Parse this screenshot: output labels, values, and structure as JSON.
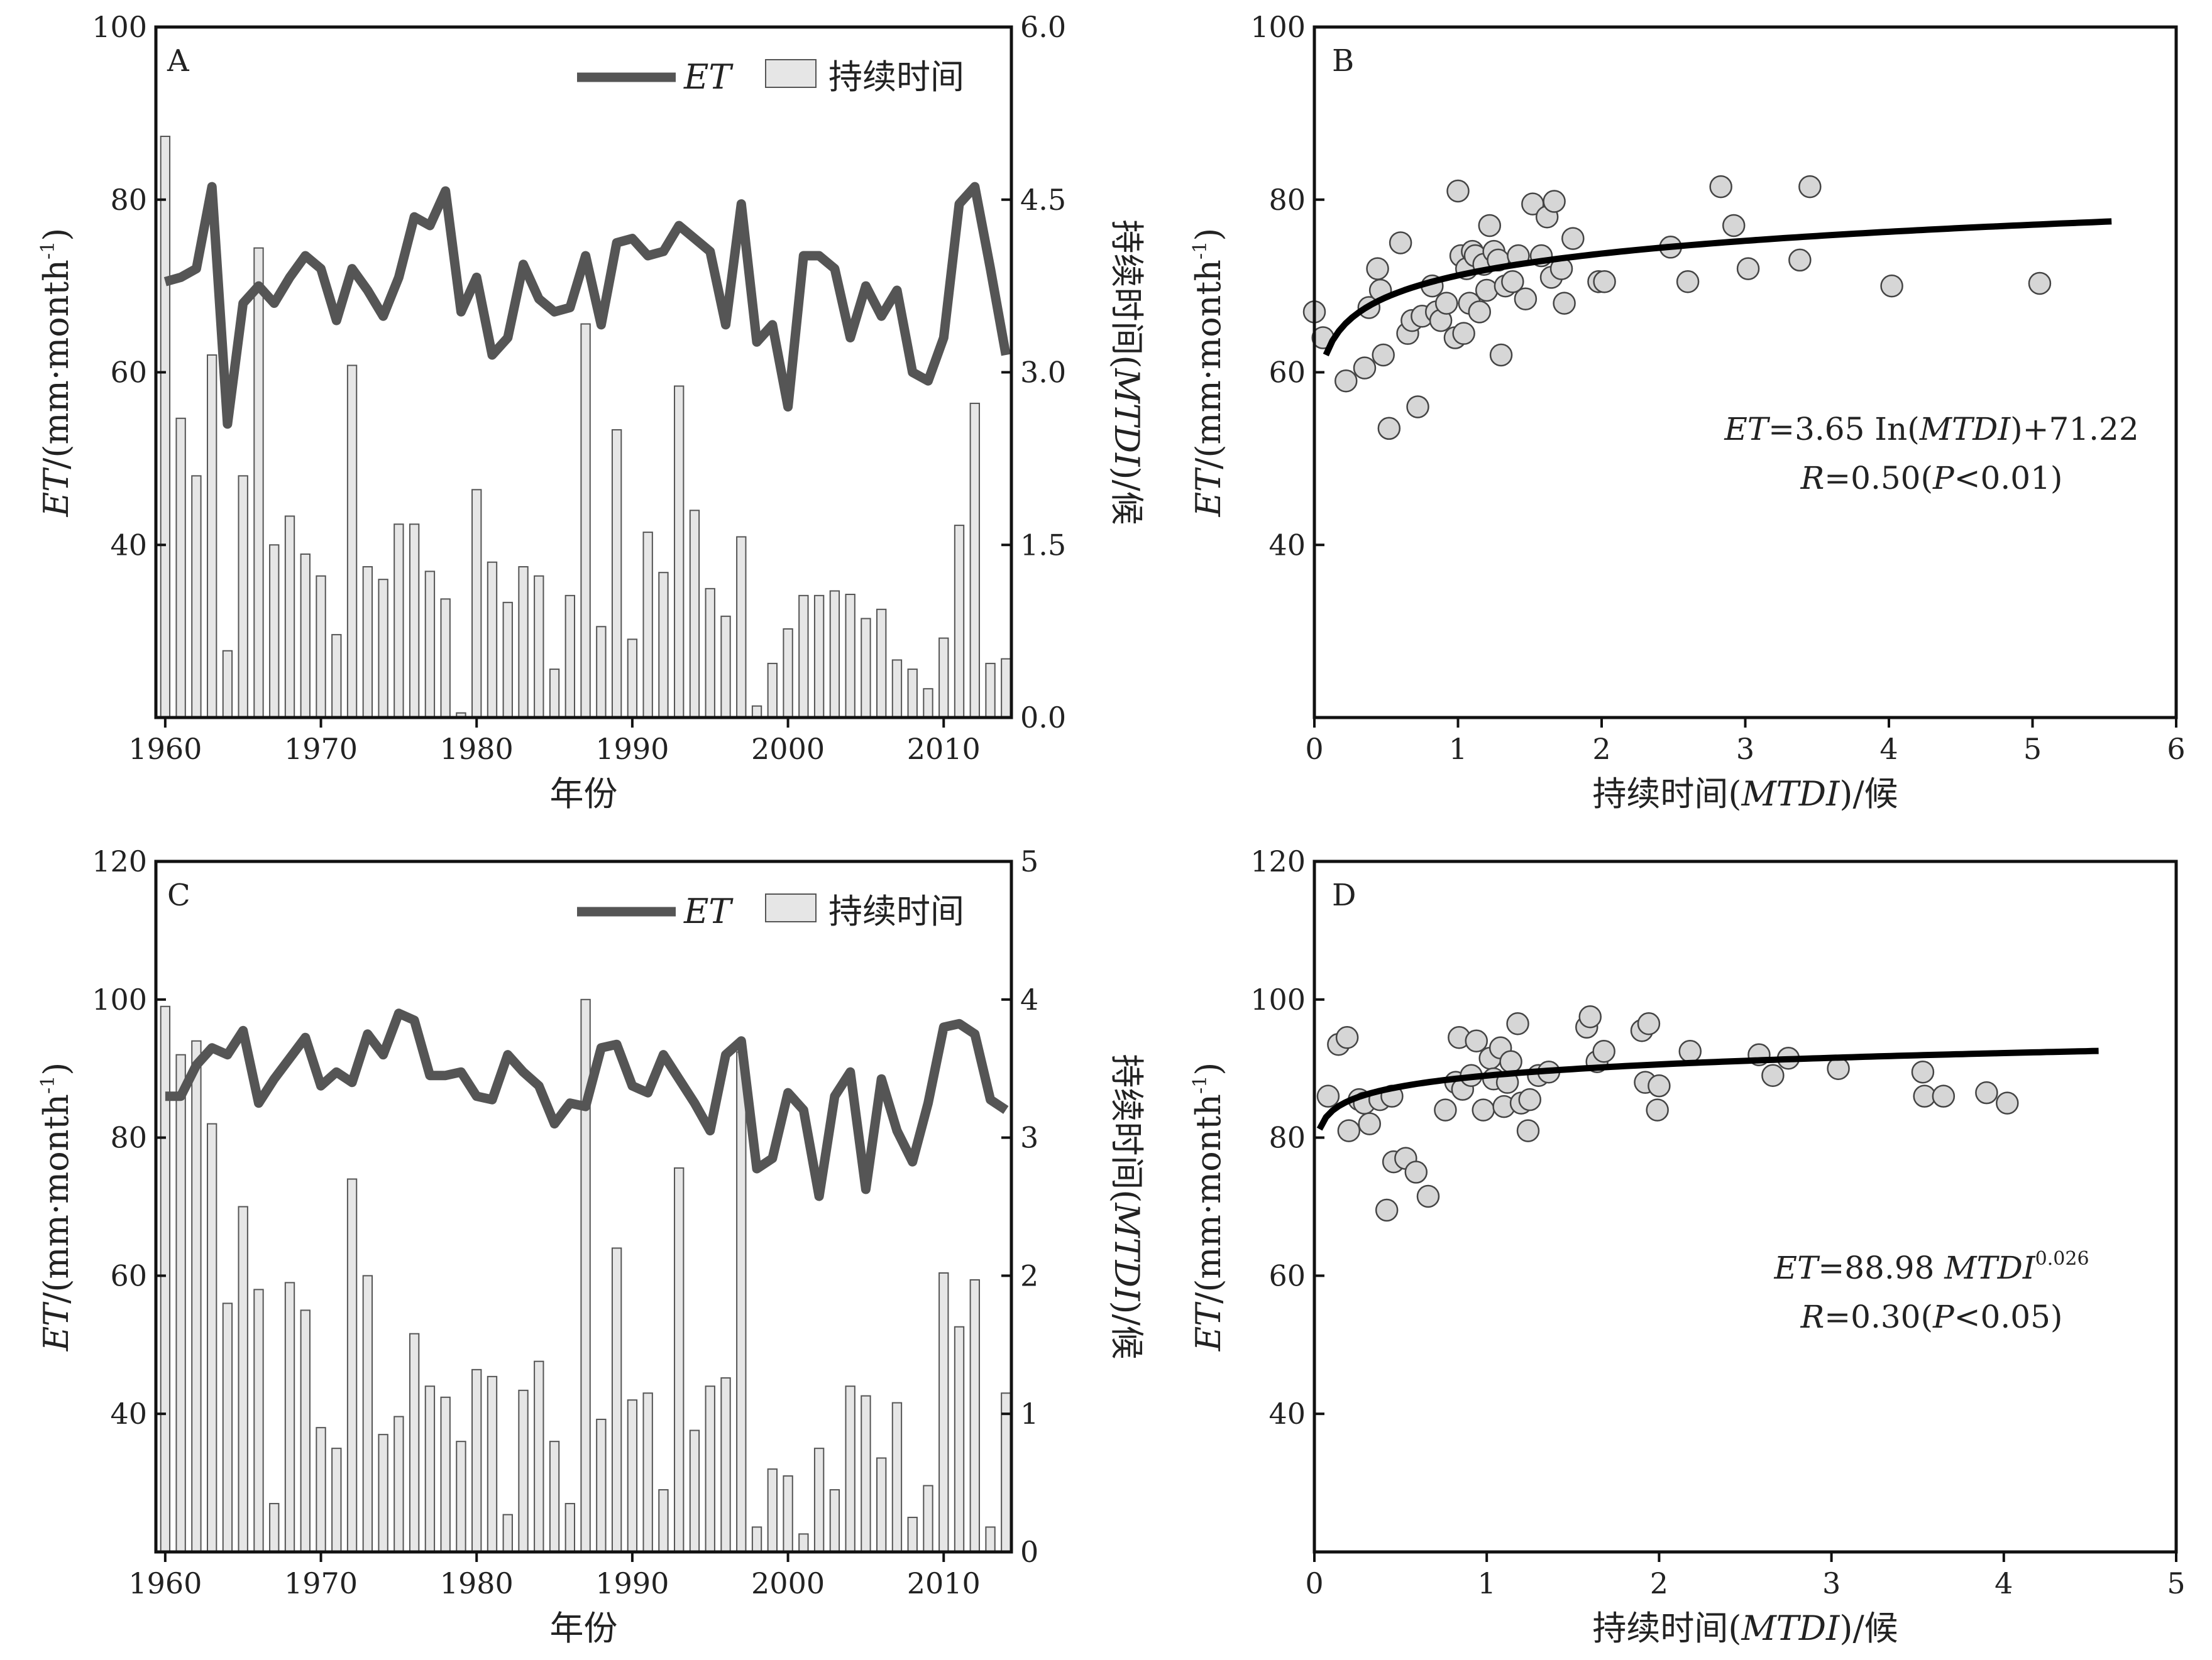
{
  "chart_data": [
    {
      "panel": "A",
      "type": "bar+line",
      "x": [
        1960,
        1961,
        1962,
        1963,
        1964,
        1965,
        1966,
        1967,
        1968,
        1969,
        1970,
        1971,
        1972,
        1973,
        1974,
        1975,
        1976,
        1977,
        1978,
        1979,
        1980,
        1981,
        1982,
        1983,
        1984,
        1985,
        1986,
        1987,
        1988,
        1989,
        1990,
        1991,
        1992,
        1993,
        1994,
        1995,
        1996,
        1997,
        1998,
        1999,
        2000,
        2001,
        2002,
        2003,
        2004,
        2005,
        2006,
        2007,
        2008,
        2009,
        2010,
        2011,
        2012,
        2013,
        2014
      ],
      "xlabel": "年份",
      "xticks": [
        "1960",
        "1970",
        "1980",
        "1990",
        "2000",
        "2010"
      ],
      "ylabel_left": {
        "base": "ET",
        "unit": "/(mm·month",
        "sup": "-1",
        "close": ")"
      },
      "ylim_left": [
        20,
        100
      ],
      "yticks_left": [
        "40",
        "60",
        "80",
        "100"
      ],
      "ylabel_right": {
        "pre": "持续时间(",
        "ital": "MTDI",
        "post": ")/候"
      },
      "ylim_right": [
        0,
        6
      ],
      "yticks_right": [
        "0.0",
        "1.5",
        "3.0",
        "4.5",
        "6.0"
      ],
      "legend": {
        "line": "ET",
        "bar": "持续时间",
        "placement": "top-right"
      },
      "series": [
        {
          "name": "ET",
          "kind": "line",
          "axis": "left",
          "values": [
            70.5,
            71,
            72,
            81.5,
            54,
            68,
            70,
            68,
            71,
            73.5,
            72,
            66,
            72,
            69.5,
            66.5,
            71,
            78,
            77,
            81,
            67,
            71,
            62,
            64,
            72.5,
            68.5,
            67,
            67.5,
            73.5,
            65.5,
            75,
            75.5,
            73.5,
            74,
            77,
            75.5,
            74,
            65.5,
            79.5,
            63.5,
            65.5,
            56,
            73.5,
            73.5,
            72,
            64,
            70,
            66.5,
            69.5,
            60,
            59,
            64,
            79.5,
            81.5,
            72,
            62
          ]
        },
        {
          "name": "持续时间",
          "kind": "bar",
          "axis": "right",
          "values": [
            5.05,
            2.6,
            2.1,
            3.15,
            0.58,
            2.1,
            4.08,
            1.5,
            1.75,
            1.42,
            1.23,
            0.72,
            3.06,
            1.31,
            1.2,
            1.68,
            1.68,
            1.27,
            1.03,
            0.04,
            1.98,
            1.35,
            1.0,
            1.31,
            1.23,
            0.42,
            1.06,
            3.42,
            0.79,
            2.5,
            0.68,
            1.61,
            1.26,
            2.88,
            1.8,
            1.12,
            0.88,
            1.57,
            0.1,
            0.47,
            0.77,
            1.06,
            1.06,
            1.1,
            1.07,
            0.86,
            0.94,
            0.5,
            0.42,
            0.25,
            0.69,
            1.67,
            2.73,
            0.47,
            0.51
          ]
        }
      ]
    },
    {
      "panel": "B",
      "type": "scatter+fit",
      "xlabel": {
        "pre": "持续时间(",
        "ital": "MTDI",
        "post": ")/候"
      },
      "xlim": [
        0,
        6
      ],
      "xticks": [
        "0",
        "1",
        "2",
        "3",
        "4",
        "5",
        "6"
      ],
      "ylabel": {
        "base": "ET",
        "unit": "/(mm·month",
        "sup": "-1",
        "close": ")"
      },
      "ylim": [
        20,
        100
      ],
      "yticks": [
        "40",
        "60",
        "80",
        "100"
      ],
      "equation": {
        "l1_i": "ET",
        "l1_t": "=3.65 In(",
        "l1_i2": "MTDI",
        "l1_t2": ")+71.22",
        "l2_i": "R",
        "l2_t": "=0.50(",
        "l2_i2": "P",
        "l2_t2": "<0.01)"
      },
      "fit": {
        "model": "log",
        "a": 3.65,
        "b": 71.22,
        "x_range": [
          0.08,
          5.55
        ]
      },
      "points": [
        [
          0,
          67
        ],
        [
          0.06,
          64
        ],
        [
          0.22,
          59
        ],
        [
          0.35,
          60.5
        ],
        [
          0.38,
          67.5
        ],
        [
          0.44,
          72
        ],
        [
          0.46,
          69.5
        ],
        [
          0.48,
          62
        ],
        [
          0.52,
          53.5
        ],
        [
          0.6,
          75
        ],
        [
          0.65,
          64.5
        ],
        [
          0.68,
          66
        ],
        [
          0.72,
          56
        ],
        [
          0.75,
          66.5
        ],
        [
          0.82,
          70
        ],
        [
          0.85,
          67
        ],
        [
          0.88,
          66
        ],
        [
          0.92,
          68
        ],
        [
          0.98,
          64
        ],
        [
          1.0,
          81
        ],
        [
          1.02,
          73.5
        ],
        [
          1.04,
          64.5
        ],
        [
          1.06,
          72
        ],
        [
          1.08,
          68
        ],
        [
          1.1,
          74
        ],
        [
          1.12,
          73.5
        ],
        [
          1.15,
          67
        ],
        [
          1.18,
          72.5
        ],
        [
          1.2,
          69.5
        ],
        [
          1.22,
          77
        ],
        [
          1.25,
          74
        ],
        [
          1.28,
          73
        ],
        [
          1.3,
          62
        ],
        [
          1.33,
          70
        ],
        [
          1.38,
          70.5
        ],
        [
          1.42,
          73.5
        ],
        [
          1.47,
          68.5
        ],
        [
          1.52,
          79.5
        ],
        [
          1.58,
          73.5
        ],
        [
          1.62,
          78
        ],
        [
          1.65,
          71
        ],
        [
          1.67,
          79.8
        ],
        [
          1.72,
          72
        ],
        [
          1.74,
          68
        ],
        [
          1.8,
          75.5
        ],
        [
          1.98,
          70.5
        ],
        [
          2.02,
          70.5
        ],
        [
          2.48,
          74.5
        ],
        [
          2.6,
          70.5
        ],
        [
          2.83,
          81.5
        ],
        [
          2.92,
          77
        ],
        [
          3.02,
          72
        ],
        [
          3.38,
          73
        ],
        [
          3.45,
          81.5
        ],
        [
          4.02,
          70
        ],
        [
          5.05,
          70.3
        ]
      ]
    },
    {
      "panel": "C",
      "type": "bar+line",
      "x": [
        1960,
        1961,
        1962,
        1963,
        1964,
        1965,
        1966,
        1967,
        1968,
        1969,
        1970,
        1971,
        1972,
        1973,
        1974,
        1975,
        1976,
        1977,
        1978,
        1979,
        1980,
        1981,
        1982,
        1983,
        1984,
        1985,
        1986,
        1987,
        1988,
        1989,
        1990,
        1991,
        1992,
        1993,
        1994,
        1995,
        1996,
        1997,
        1998,
        1999,
        2000,
        2001,
        2002,
        2003,
        2004,
        2005,
        2006,
        2007,
        2008,
        2009,
        2010,
        2011,
        2012,
        2013,
        2014
      ],
      "xlabel": "年份",
      "xticks": [
        "1960",
        "1970",
        "1980",
        "1990",
        "2000",
        "2010"
      ],
      "ylabel_left": {
        "base": "ET",
        "unit": "/(mm·month",
        "sup": "-1",
        "close": ")"
      },
      "ylim_left": [
        20,
        120
      ],
      "yticks_left": [
        "40",
        "60",
        "80",
        "100",
        "120"
      ],
      "ylabel_right": {
        "pre": "持续时间(",
        "ital": "MTDI",
        "post": ")/候"
      },
      "ylim_right": [
        0,
        5
      ],
      "yticks_right": [
        "0",
        "1",
        "2",
        "3",
        "4",
        "5"
      ],
      "legend": {
        "line": "ET",
        "bar": "持续时间",
        "placement": "top-right"
      },
      "series": [
        {
          "name": "ET",
          "kind": "line",
          "axis": "left",
          "values": [
            86,
            86,
            90.5,
            93,
            92,
            95.5,
            85,
            88.5,
            91.5,
            94.5,
            87.5,
            89.5,
            88,
            95,
            92,
            98,
            97,
            89,
            89,
            89.5,
            86,
            85.5,
            92,
            89.5,
            87.5,
            82,
            85,
            84.5,
            93,
            93.5,
            87.5,
            86.5,
            92,
            88.5,
            85,
            81,
            92,
            94,
            75.5,
            77,
            86.5,
            84,
            71.5,
            86,
            89.5,
            72.5,
            88.5,
            81,
            76.5,
            85,
            96,
            96.5,
            95,
            85.5,
            84
          ]
        },
        {
          "name": "持续时间",
          "kind": "bar",
          "axis": "right",
          "values": [
            3.95,
            3.6,
            3.7,
            3.1,
            1.8,
            2.5,
            1.9,
            0.35,
            1.95,
            1.75,
            0.9,
            0.75,
            2.7,
            2.0,
            0.85,
            0.98,
            1.58,
            1.2,
            1.12,
            0.8,
            1.32,
            1.27,
            0.27,
            1.17,
            1.38,
            0.8,
            0.35,
            4.0,
            0.96,
            2.2,
            1.1,
            1.15,
            0.45,
            2.78,
            0.88,
            1.2,
            1.26,
            3.62,
            0.18,
            0.6,
            0.55,
            0.13,
            0.75,
            0.45,
            1.2,
            1.13,
            0.68,
            1.08,
            0.25,
            0.48,
            2.02,
            1.63,
            1.97,
            0.18,
            1.15
          ]
        }
      ]
    },
    {
      "panel": "D",
      "type": "scatter+fit",
      "xlabel": {
        "pre": "持续时间(",
        "ital": "MTDI",
        "post": ")/候"
      },
      "xlim": [
        0,
        5
      ],
      "xticks": [
        "0",
        "1",
        "2",
        "3",
        "4",
        "5"
      ],
      "ylabel": {
        "base": "ET",
        "unit": "/(mm·month",
        "sup": "-1",
        "close": ")"
      },
      "ylim": [
        20,
        120
      ],
      "yticks": [
        "40",
        "60",
        "80",
        "100",
        "120"
      ],
      "equation": {
        "l1_i": "ET",
        "l1_t": "=88.98 ",
        "l1_i2": "MTDI",
        "l1_sup": "0.026",
        "l2_i": "R",
        "l2_t": "=0.30(",
        "l2_i2": "P",
        "l2_t2": "<0.05)"
      },
      "fit": {
        "model": "power",
        "a": 88.98,
        "b": 0.026,
        "x_range": [
          0.03,
          4.55
        ]
      },
      "points": [
        [
          0.08,
          86
        ],
        [
          0.14,
          93.5
        ],
        [
          0.19,
          94.5
        ],
        [
          0.2,
          81
        ],
        [
          0.26,
          85.5
        ],
        [
          0.29,
          85
        ],
        [
          0.32,
          82
        ],
        [
          0.38,
          85.5
        ],
        [
          0.42,
          69.5
        ],
        [
          0.45,
          86
        ],
        [
          0.46,
          76.5
        ],
        [
          0.53,
          77
        ],
        [
          0.59,
          75
        ],
        [
          0.66,
          71.5
        ],
        [
          0.76,
          84
        ],
        [
          0.82,
          88
        ],
        [
          0.84,
          94.5
        ],
        [
          0.86,
          87
        ],
        [
          0.91,
          89
        ],
        [
          0.94,
          94
        ],
        [
          0.98,
          84
        ],
        [
          1.02,
          91.5
        ],
        [
          1.04,
          88.5
        ],
        [
          1.08,
          93
        ],
        [
          1.1,
          84.5
        ],
        [
          1.12,
          88
        ],
        [
          1.14,
          91
        ],
        [
          1.18,
          96.5
        ],
        [
          1.2,
          85
        ],
        [
          1.24,
          81
        ],
        [
          1.25,
          85.5
        ],
        [
          1.3,
          89
        ],
        [
          1.36,
          89.5
        ],
        [
          1.58,
          96
        ],
        [
          1.6,
          97.5
        ],
        [
          1.64,
          91
        ],
        [
          1.68,
          92.5
        ],
        [
          1.9,
          95.5
        ],
        [
          1.92,
          88
        ],
        [
          1.94,
          96.5
        ],
        [
          1.99,
          84
        ],
        [
          2.0,
          87.5
        ],
        [
          2.18,
          92.5
        ],
        [
          2.58,
          92
        ],
        [
          2.66,
          89
        ],
        [
          2.75,
          91.5
        ],
        [
          3.04,
          90
        ],
        [
          3.53,
          89.5
        ],
        [
          3.54,
          86
        ],
        [
          3.65,
          86
        ],
        [
          3.9,
          86.5
        ],
        [
          4.02,
          85
        ]
      ]
    }
  ]
}
